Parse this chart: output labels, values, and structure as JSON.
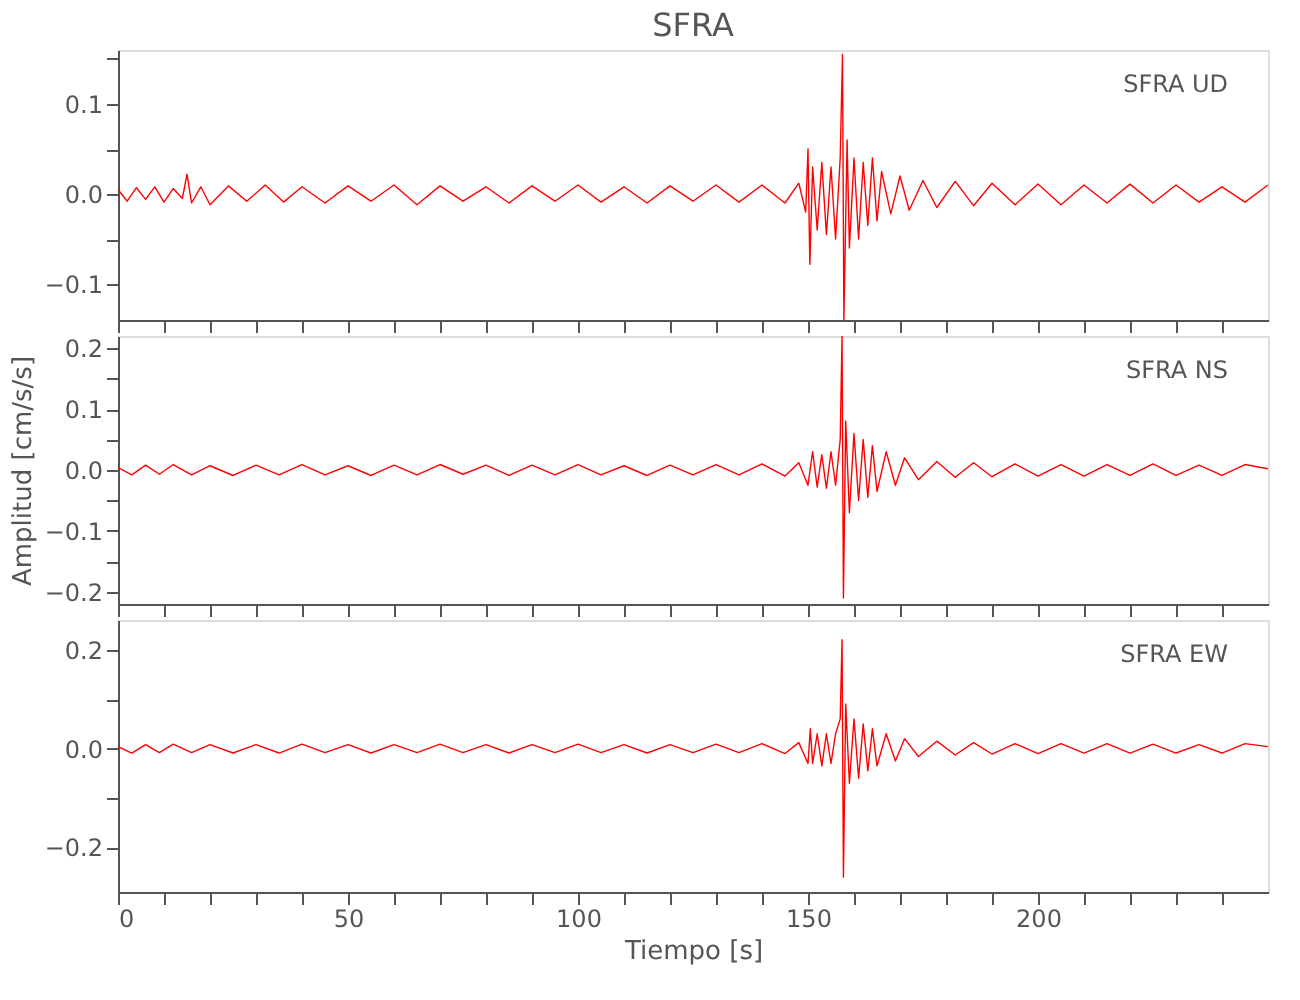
{
  "chart_data": [
    {
      "type": "line",
      "title": "SFRA",
      "annotations": [
        "SFRA   UD"
      ],
      "tick_labels": "y",
      "grid": false,
      "xlim": [
        0,
        250
      ],
      "xticks": [
        {
          "value": 0,
          "label": null
        },
        {
          "value": 10,
          "label": null
        },
        {
          "value": 20,
          "label": null
        },
        {
          "value": 30,
          "label": null
        },
        {
          "value": 40,
          "label": null
        },
        {
          "value": 50,
          "label": null
        },
        {
          "value": 60,
          "label": null
        },
        {
          "value": 70,
          "label": null
        },
        {
          "value": 80,
          "label": null
        },
        {
          "value": 90,
          "label": null
        },
        {
          "value": 100,
          "label": null
        },
        {
          "value": 110,
          "label": null
        },
        {
          "value": 120,
          "label": null
        },
        {
          "value": 130,
          "label": null
        },
        {
          "value": 140,
          "label": null
        },
        {
          "value": 150,
          "label": null
        },
        {
          "value": 160,
          "label": null
        },
        {
          "value": 170,
          "label": null
        },
        {
          "value": 180,
          "label": null
        },
        {
          "value": 190,
          "label": null
        },
        {
          "value": 200,
          "label": null
        },
        {
          "value": 210,
          "label": null
        },
        {
          "value": 220,
          "label": null
        },
        {
          "value": 230,
          "label": null
        },
        {
          "value": 240,
          "label": null
        }
      ],
      "ylim": [
        -0.14,
        0.16
      ],
      "yticks": [
        {
          "value": -0.1,
          "label": "−0.1"
        },
        {
          "value": -0.05,
          "label": null
        },
        {
          "value": 0,
          "label": "0.0"
        },
        {
          "value": 0.05,
          "label": null
        },
        {
          "value": 0.1,
          "label": "0.1"
        },
        {
          "value": 0.15,
          "label": null
        }
      ],
      "x": [
        0,
        2,
        4,
        6,
        8,
        10,
        12,
        14,
        15,
        16,
        18,
        20,
        24,
        28,
        32,
        36,
        40,
        45,
        50,
        55,
        60,
        65,
        70,
        75,
        80,
        85,
        90,
        95,
        100,
        105,
        110,
        115,
        120,
        125,
        130,
        135,
        140,
        145,
        148,
        149.5,
        150,
        150.4,
        151,
        152,
        153,
        154,
        155,
        156,
        157,
        157.5,
        157.8,
        158.5,
        159,
        160,
        161,
        162,
        163,
        164,
        165,
        166,
        168,
        170,
        172,
        175,
        178,
        182,
        186,
        190,
        195,
        200,
        205,
        210,
        215,
        220,
        225,
        230,
        235,
        240,
        245,
        250
      ],
      "series": [
        {
          "color": "#ff0000",
          "values": [
            0.005,
            -0.008,
            0.007,
            -0.006,
            0.008,
            -0.009,
            0.006,
            -0.005,
            0.022,
            -0.01,
            0.008,
            -0.012,
            0.009,
            -0.008,
            0.01,
            -0.009,
            0.008,
            -0.01,
            0.009,
            -0.008,
            0.01,
            -0.012,
            0.009,
            -0.008,
            0.008,
            -0.01,
            0.009,
            -0.008,
            0.01,
            -0.009,
            0.008,
            -0.01,
            0.009,
            -0.008,
            0.01,
            -0.009,
            0.01,
            -0.01,
            0.012,
            -0.02,
            0.05,
            -0.078,
            0.03,
            -0.04,
            0.035,
            -0.045,
            0.03,
            -0.05,
            0.04,
            0.155,
            -0.14,
            0.06,
            -0.06,
            0.04,
            -0.05,
            0.035,
            -0.035,
            0.04,
            -0.03,
            0.025,
            -0.022,
            0.02,
            -0.018,
            0.015,
            -0.015,
            0.014,
            -0.013,
            0.012,
            -0.012,
            0.011,
            -0.012,
            0.01,
            -0.01,
            0.011,
            -0.01,
            0.01,
            -0.009,
            0.008,
            -0.009,
            0.01
          ]
        }
      ]
    },
    {
      "type": "line",
      "annotations": [
        "SFRA   NS"
      ],
      "ylabel": "Amplitud [cm/s/s]",
      "tick_labels": "y",
      "grid": false,
      "xlim": [
        0,
        250
      ],
      "xticks": [
        {
          "value": 0,
          "label": null
        },
        {
          "value": 10,
          "label": null
        },
        {
          "value": 20,
          "label": null
        },
        {
          "value": 30,
          "label": null
        },
        {
          "value": 40,
          "label": null
        },
        {
          "value": 50,
          "label": null
        },
        {
          "value": 60,
          "label": null
        },
        {
          "value": 70,
          "label": null
        },
        {
          "value": 80,
          "label": null
        },
        {
          "value": 90,
          "label": null
        },
        {
          "value": 100,
          "label": null
        },
        {
          "value": 110,
          "label": null
        },
        {
          "value": 120,
          "label": null
        },
        {
          "value": 130,
          "label": null
        },
        {
          "value": 140,
          "label": null
        },
        {
          "value": 150,
          "label": null
        },
        {
          "value": 160,
          "label": null
        },
        {
          "value": 170,
          "label": null
        },
        {
          "value": 180,
          "label": null
        },
        {
          "value": 190,
          "label": null
        },
        {
          "value": 200,
          "label": null
        },
        {
          "value": 210,
          "label": null
        },
        {
          "value": 220,
          "label": null
        },
        {
          "value": 230,
          "label": null
        },
        {
          "value": 240,
          "label": null
        }
      ],
      "ylim": [
        -0.22,
        0.22
      ],
      "yticks": [
        {
          "value": -0.2,
          "label": "−0.2"
        },
        {
          "value": -0.15,
          "label": null
        },
        {
          "value": -0.1,
          "label": "−0.1"
        },
        {
          "value": -0.05,
          "label": null
        },
        {
          "value": 0,
          "label": "0.0"
        },
        {
          "value": 0.05,
          "label": null
        },
        {
          "value": 0.1,
          "label": "0.1"
        },
        {
          "value": 0.15,
          "label": null
        },
        {
          "value": 0.2,
          "label": "0.2"
        }
      ],
      "x": [
        0,
        3,
        6,
        9,
        12,
        16,
        20,
        25,
        30,
        35,
        40,
        45,
        50,
        55,
        60,
        65,
        70,
        75,
        80,
        85,
        90,
        95,
        100,
        105,
        110,
        115,
        120,
        125,
        130,
        135,
        140,
        145,
        148,
        150,
        151,
        152,
        153,
        154,
        155,
        156,
        157,
        157.4,
        157.7,
        158.2,
        159,
        160,
        161,
        162,
        163,
        164,
        165,
        167,
        169,
        171,
        174,
        178,
        182,
        186,
        190,
        195,
        200,
        205,
        210,
        215,
        220,
        225,
        230,
        235,
        240,
        245,
        250
      ],
      "series": [
        {
          "color": "#ff0000",
          "values": [
            0.004,
            -0.008,
            0.008,
            -0.007,
            0.009,
            -0.008,
            0.007,
            -0.009,
            0.008,
            -0.008,
            0.009,
            -0.008,
            0.007,
            -0.009,
            0.008,
            -0.008,
            0.009,
            -0.007,
            0.008,
            -0.009,
            0.008,
            -0.008,
            0.009,
            -0.008,
            0.007,
            -0.009,
            0.008,
            -0.008,
            0.009,
            -0.008,
            0.01,
            -0.01,
            0.012,
            -0.025,
            0.03,
            -0.028,
            0.025,
            -0.03,
            0.03,
            -0.025,
            0.05,
            0.22,
            -0.21,
            0.08,
            -0.07,
            0.06,
            -0.05,
            0.05,
            -0.045,
            0.04,
            -0.035,
            0.03,
            -0.025,
            0.02,
            -0.016,
            0.014,
            -0.012,
            0.012,
            -0.011,
            0.01,
            -0.01,
            0.009,
            -0.01,
            0.009,
            -0.009,
            0.01,
            -0.009,
            0.008,
            -0.009,
            0.009,
            0.002
          ]
        }
      ]
    },
    {
      "type": "line",
      "annotations": [
        "SFRA   EW"
      ],
      "xlabel": "Tiempo [s]",
      "grid": false,
      "xlim": [
        0,
        250
      ],
      "xticks": [
        0,
        {
          "value": 10,
          "label": null
        },
        {
          "value": 20,
          "label": null
        },
        {
          "value": 30,
          "label": null
        },
        {
          "value": 40,
          "label": null
        },
        50,
        {
          "value": 60,
          "label": null
        },
        {
          "value": 70,
          "label": null
        },
        {
          "value": 80,
          "label": null
        },
        {
          "value": 90,
          "label": null
        },
        100,
        {
          "value": 110,
          "label": null
        },
        {
          "value": 120,
          "label": null
        },
        {
          "value": 130,
          "label": null
        },
        {
          "value": 140,
          "label": null
        },
        150,
        {
          "value": 160,
          "label": null
        },
        {
          "value": 170,
          "label": null
        },
        {
          "value": 180,
          "label": null
        },
        {
          "value": 190,
          "label": null
        },
        200,
        {
          "value": 210,
          "label": null
        },
        {
          "value": 220,
          "label": null
        },
        {
          "value": 230,
          "label": null
        },
        {
          "value": 240,
          "label": null
        }
      ],
      "ylim": [
        -0.29,
        0.26
      ],
      "yticks": [
        {
          "value": -0.2,
          "label": "−0.2"
        },
        {
          "value": -0.1,
          "label": null
        },
        {
          "value": 0,
          "label": "0.0"
        },
        {
          "value": 0.1,
          "label": null
        },
        {
          "value": 0.2,
          "label": "0.2"
        }
      ],
      "x": [
        0,
        3,
        6,
        9,
        12,
        16,
        20,
        25,
        30,
        35,
        40,
        45,
        50,
        55,
        60,
        65,
        70,
        75,
        80,
        85,
        90,
        95,
        100,
        105,
        110,
        115,
        120,
        125,
        130,
        135,
        140,
        145,
        148,
        150,
        150.5,
        151,
        152,
        153,
        154,
        155,
        156,
        157,
        157.4,
        157.7,
        158.2,
        159,
        160,
        161,
        162,
        163,
        164,
        165,
        167,
        169,
        171,
        174,
        178,
        182,
        186,
        190,
        195,
        200,
        205,
        210,
        215,
        220,
        225,
        230,
        235,
        240,
        245,
        250
      ],
      "series": [
        {
          "color": "#ff0000",
          "values": [
            0.004,
            -0.009,
            0.008,
            -0.008,
            0.009,
            -0.008,
            0.008,
            -0.009,
            0.008,
            -0.009,
            0.009,
            -0.008,
            0.008,
            -0.009,
            0.008,
            -0.008,
            0.009,
            -0.008,
            0.008,
            -0.009,
            0.008,
            -0.008,
            0.009,
            -0.008,
            0.008,
            -0.009,
            0.008,
            -0.008,
            0.009,
            -0.008,
            0.01,
            -0.01,
            0.012,
            -0.03,
            0.04,
            -0.03,
            0.03,
            -0.035,
            0.03,
            -0.03,
            0.03,
            0.06,
            0.22,
            -0.26,
            0.09,
            -0.07,
            0.06,
            -0.06,
            0.05,
            -0.045,
            0.04,
            -0.035,
            0.03,
            -0.025,
            0.02,
            -0.016,
            0.015,
            -0.013,
            0.012,
            -0.011,
            0.01,
            -0.01,
            0.01,
            -0.009,
            0.01,
            -0.009,
            0.009,
            -0.009,
            0.008,
            -0.009,
            0.01,
            0.004
          ]
        }
      ]
    }
  ]
}
